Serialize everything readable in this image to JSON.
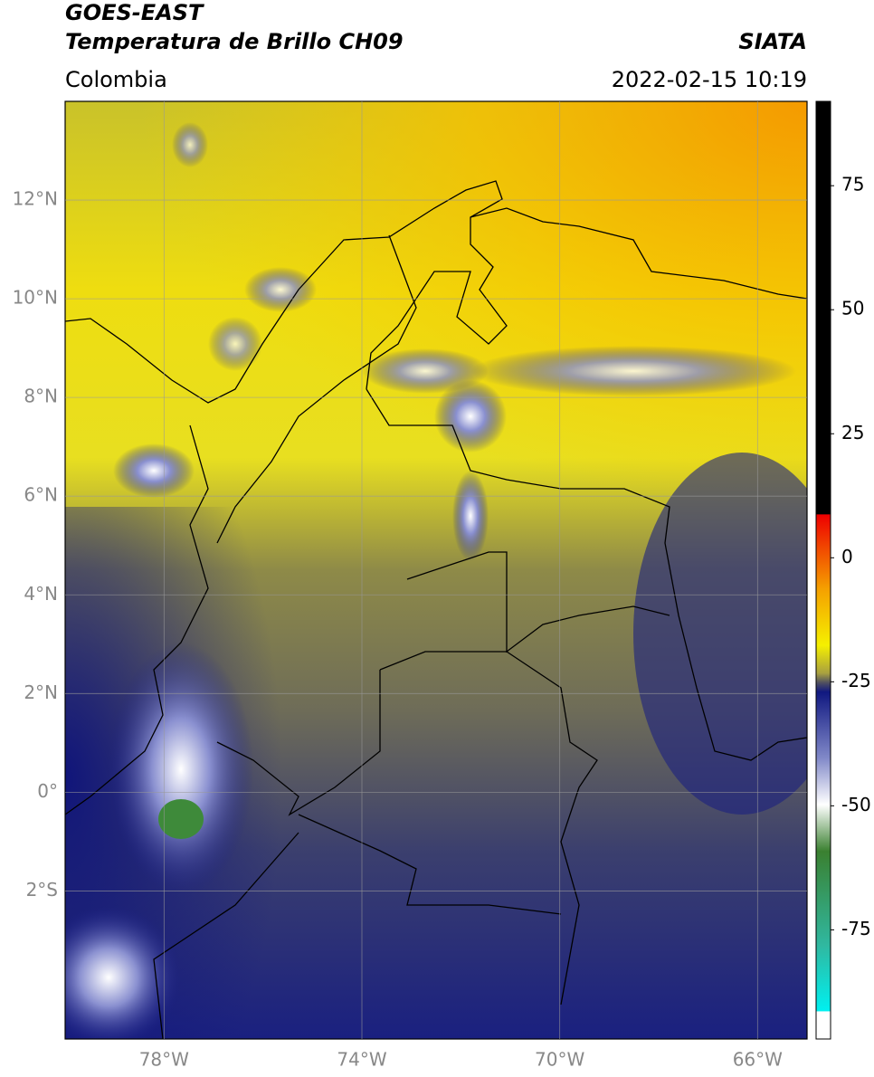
{
  "header": {
    "title": "GOES-EAST",
    "subtitle": "Temperatura de Brillo CH09",
    "source": "SIATA",
    "region": "Colombia",
    "datetime": "2022-02-15 10:19"
  },
  "map": {
    "lonlim": [
      -80,
      -65
    ],
    "latlim": [
      -5,
      14
    ],
    "lat_ticks": [
      {
        "value": 12,
        "label": "12°N"
      },
      {
        "value": 10,
        "label": "10°N"
      },
      {
        "value": 8,
        "label": "8°N"
      },
      {
        "value": 6,
        "label": "6°N"
      },
      {
        "value": 4,
        "label": "4°N"
      },
      {
        "value": 2,
        "label": "2°N"
      },
      {
        "value": 0,
        "label": "0°"
      },
      {
        "value": -2,
        "label": "2°S"
      }
    ],
    "lon_ticks": [
      {
        "value": -78,
        "label": "78°W"
      },
      {
        "value": -74,
        "label": "74°W"
      },
      {
        "value": -70,
        "label": "70°W"
      },
      {
        "value": -66,
        "label": "66°W"
      }
    ]
  },
  "colorbar": {
    "lim": [
      -97,
      92
    ],
    "ticks": [
      75,
      50,
      25,
      0,
      -25,
      -50,
      -75
    ]
  }
}
